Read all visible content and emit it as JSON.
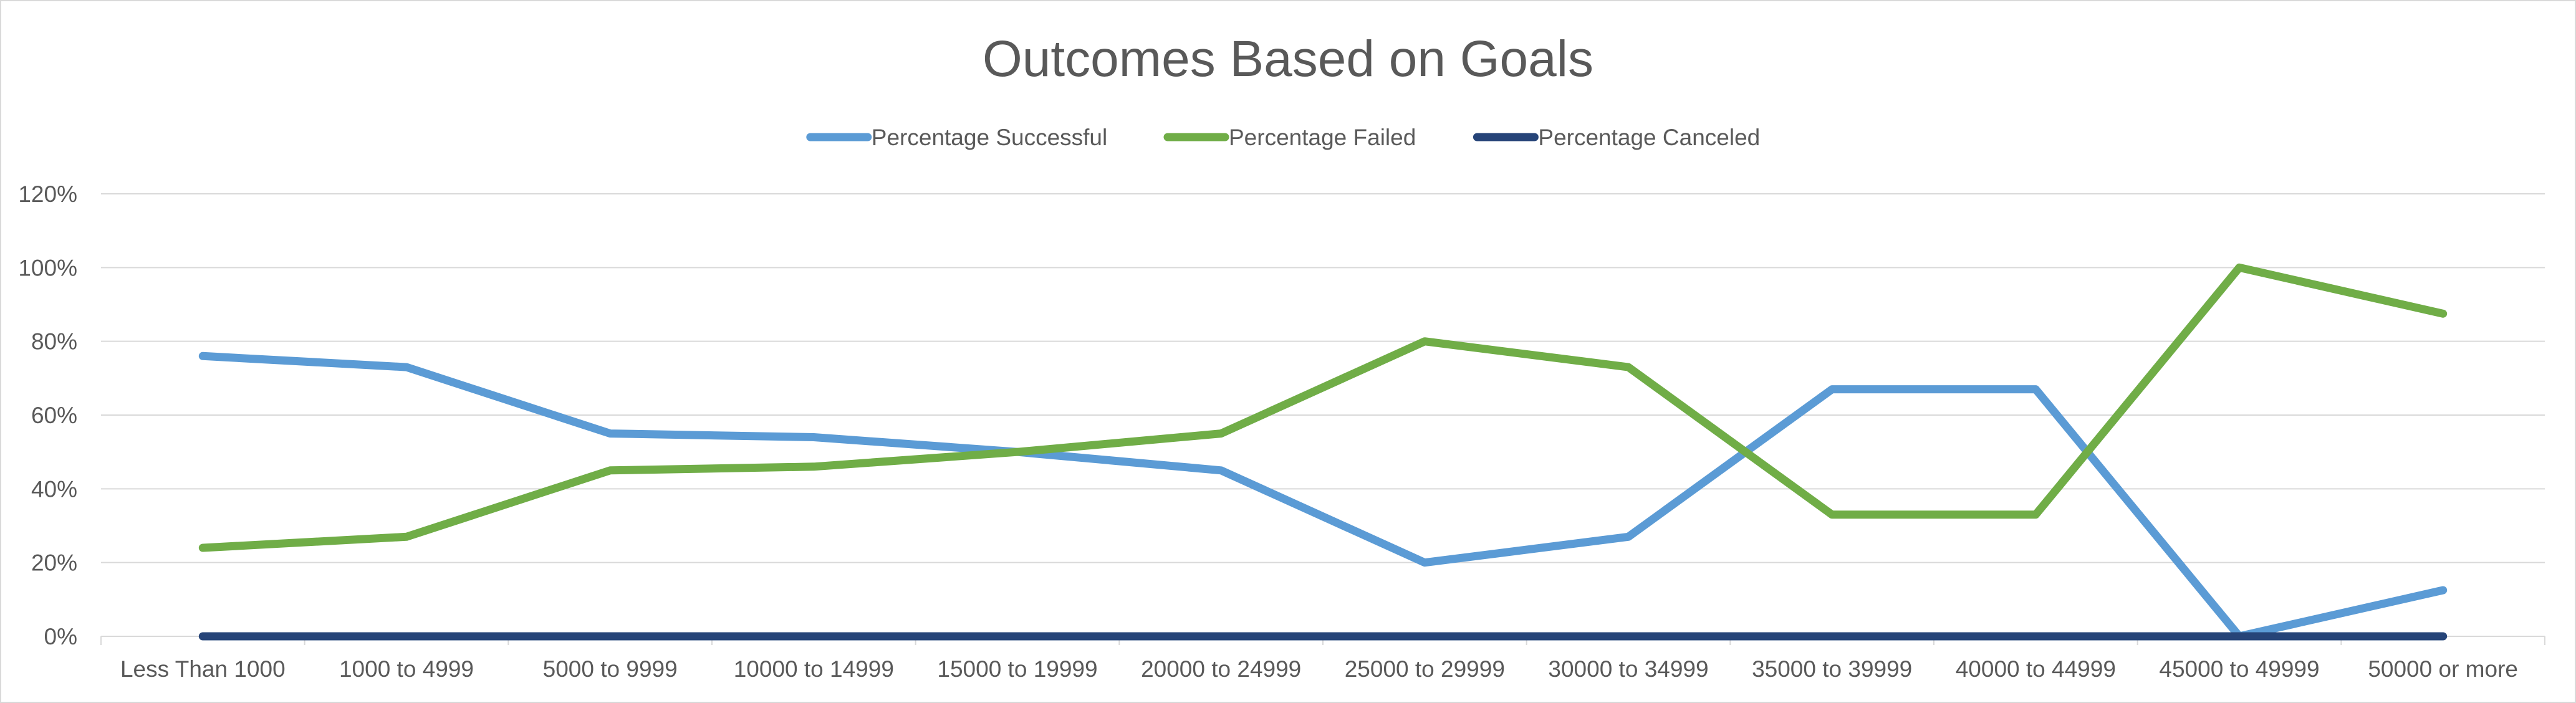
{
  "chart_data": {
    "type": "line",
    "title": "Outcomes Based on Goals",
    "xlabel": "",
    "ylabel": "",
    "categories": [
      "Less Than 1000",
      "1000 to 4999",
      "5000 to 9999",
      "10000 to 14999",
      "15000 to 19999",
      "20000 to 24999",
      "25000 to 29999",
      "30000 to 34999",
      "35000 to 39999",
      "40000 to 44999",
      "45000 to 49999",
      "50000 or more"
    ],
    "ylim": [
      0,
      1.2
    ],
    "y_ticks": [
      0,
      0.2,
      0.4,
      0.6,
      0.8,
      1.0,
      1.2
    ],
    "y_tick_labels": [
      "0%",
      "20%",
      "40%",
      "60%",
      "80%",
      "100%",
      "120%"
    ],
    "grid": true,
    "legend_position": "top",
    "series": [
      {
        "name": "Percentage Successful",
        "color": "#5b9bd5",
        "values": [
          0.76,
          0.73,
          0.55,
          0.54,
          0.5,
          0.45,
          0.2,
          0.27,
          0.67,
          0.67,
          0.0,
          0.125
        ]
      },
      {
        "name": "Percentage Failed",
        "color": "#70ad47",
        "values": [
          0.24,
          0.27,
          0.45,
          0.46,
          0.5,
          0.55,
          0.8,
          0.73,
          0.33,
          0.33,
          1.0,
          0.875
        ]
      },
      {
        "name": "Percentage Canceled",
        "color": "#264478",
        "values": [
          0,
          0,
          0,
          0,
          0,
          0,
          0,
          0,
          0,
          0,
          0,
          0
        ]
      }
    ],
    "colors": {
      "gridline": "#d9d9d9",
      "text": "#595959",
      "border": "#d9d9d9"
    }
  }
}
